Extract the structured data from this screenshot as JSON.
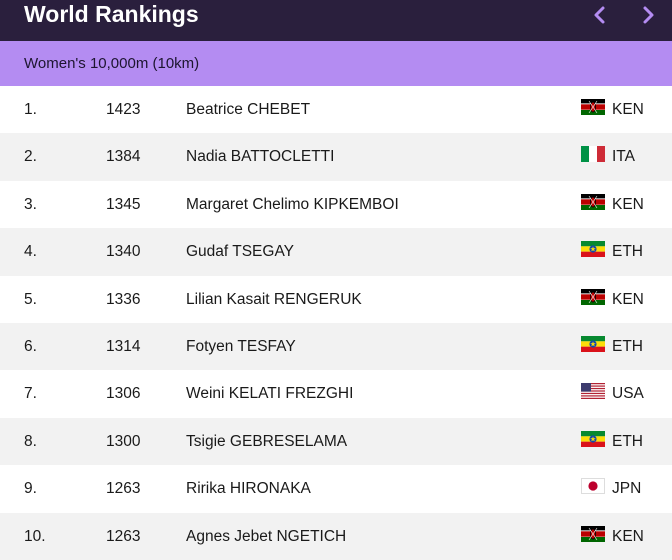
{
  "header": {
    "title": "World Rankings",
    "prev_icon": "chevron-left-icon",
    "next_icon": "chevron-right-icon",
    "accent_color": "#b48cf2"
  },
  "event": {
    "label": "Women's 10,000m (10km)"
  },
  "rankings": [
    {
      "rank": "1.",
      "points": "1423",
      "athlete": "Beatrice CHEBET",
      "country": "KEN",
      "flag": "kenya-flag-icon"
    },
    {
      "rank": "2.",
      "points": "1384",
      "athlete": "Nadia BATTOCLETTI",
      "country": "ITA",
      "flag": "italy-flag-icon"
    },
    {
      "rank": "3.",
      "points": "1345",
      "athlete": "Margaret Chelimo KIPKEMBOI",
      "country": "KEN",
      "flag": "kenya-flag-icon"
    },
    {
      "rank": "4.",
      "points": "1340",
      "athlete": "Gudaf TSEGAY",
      "country": "ETH",
      "flag": "ethiopia-flag-icon"
    },
    {
      "rank": "5.",
      "points": "1336",
      "athlete": "Lilian Kasait RENGERUK",
      "country": "KEN",
      "flag": "kenya-flag-icon"
    },
    {
      "rank": "6.",
      "points": "1314",
      "athlete": "Fotyen TESFAY",
      "country": "ETH",
      "flag": "ethiopia-flag-icon"
    },
    {
      "rank": "7.",
      "points": "1306",
      "athlete": "Weini KELATI FREZGHI",
      "country": "USA",
      "flag": "usa-flag-icon"
    },
    {
      "rank": "8.",
      "points": "1300",
      "athlete": "Tsigie GEBRESELAMA",
      "country": "ETH",
      "flag": "ethiopia-flag-icon"
    },
    {
      "rank": "9.",
      "points": "1263",
      "athlete": "Ririka HIRONAKA",
      "country": "JPN",
      "flag": "japan-flag-icon"
    },
    {
      "rank": "10.",
      "points": "1263",
      "athlete": "Agnes Jebet NGETICH",
      "country": "KEN",
      "flag": "kenya-flag-icon"
    }
  ]
}
